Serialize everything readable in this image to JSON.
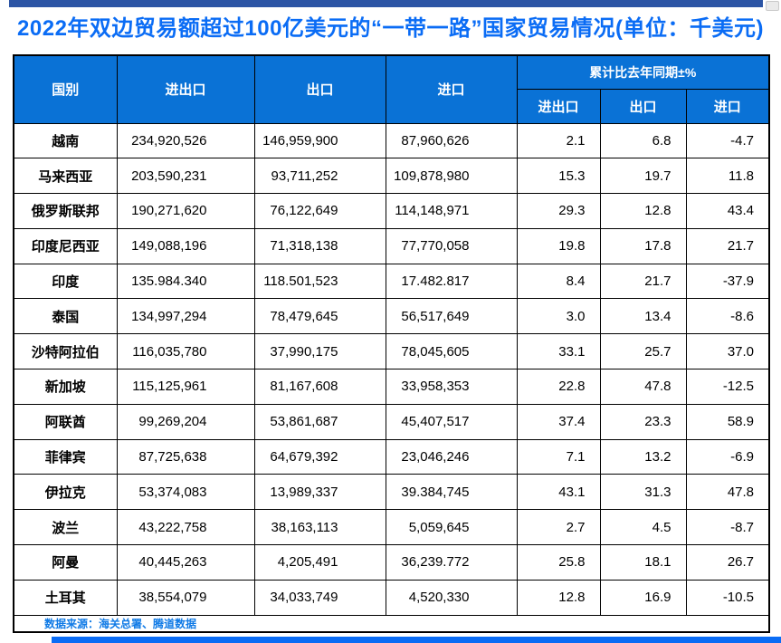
{
  "page": {
    "title": "2022年双边贸易额超过100亿美元的“一带一路”国家贸易情况(单位：千美元)",
    "colors": {
      "title_text": "#0a6cf5",
      "header_bg": "#0a72d6",
      "header_text": "#ffffff",
      "top_bar": "#2c55a5",
      "bottom_bar": "#0a6cf5",
      "source_text": "#0f7ae6",
      "border": "#000000"
    }
  },
  "table": {
    "header": {
      "country": "国别",
      "total": "进出口",
      "export": "出口",
      "import": "进口",
      "yoy_group": "累计比去年同期±%",
      "yoy_total": "进出口",
      "yoy_export": "出口",
      "yoy_import": "进口"
    },
    "rows": [
      [
        "越南",
        "234,920,526",
        "146,959,900",
        "87,960,626",
        "2.1",
        "6.8",
        "-4.7"
      ],
      [
        "马来西亚",
        "203,590,231",
        "93,711,252",
        "109,878,980",
        "15.3",
        "19.7",
        "11.8"
      ],
      [
        "俄罗斯联邦",
        "190,271,620",
        "76,122,649",
        "114,148,971",
        "29.3",
        "12.8",
        "43.4"
      ],
      [
        "印度尼西亚",
        "149,088,196",
        "71,318,138",
        "77,770,058",
        "19.8",
        "17.8",
        "21.7"
      ],
      [
        "印度",
        "135.984.340",
        "118.501,523",
        "17.482.817",
        "8.4",
        "21.7",
        "-37.9"
      ],
      [
        "泰国",
        "134,997,294",
        "78,479,645",
        "56,517,649",
        "3.0",
        "13.4",
        "-8.6"
      ],
      [
        "沙特阿拉伯",
        "116,035,780",
        "37,990,175",
        "78,045,605",
        "33.1",
        "25.7",
        "37.0"
      ],
      [
        "新加坡",
        "115,125,961",
        "81,167,608",
        "33,958,353",
        "22.8",
        "47.8",
        "-12.5"
      ],
      [
        "阿联酋",
        "99,269,204",
        "53,861,687",
        "45,407,517",
        "37.4",
        "23.3",
        "58.9"
      ],
      [
        "菲律宾",
        "87,725,638",
        "64,679,392",
        "23,046,246",
        "7.1",
        "13.2",
        "-6.9"
      ],
      [
        "伊拉克",
        "53,374,083",
        "13,989,337",
        "39.384,745",
        "43.1",
        "31.3",
        "47.8"
      ],
      [
        "波兰",
        "43,222,758",
        "38,163,113",
        "5,059,645",
        "2.7",
        "4.5",
        "-8.7"
      ],
      [
        "阿曼",
        "40,445,263",
        "4,205,491",
        "36,239.772",
        "25.8",
        "18.1",
        "26.7"
      ],
      [
        "土耳其",
        "38,554,079",
        "34,033,749",
        "4,520,330",
        "12.8",
        "16.9",
        "-10.5"
      ]
    ]
  },
  "footer": {
    "source": "数据来源：海关总署、腾道数据"
  }
}
